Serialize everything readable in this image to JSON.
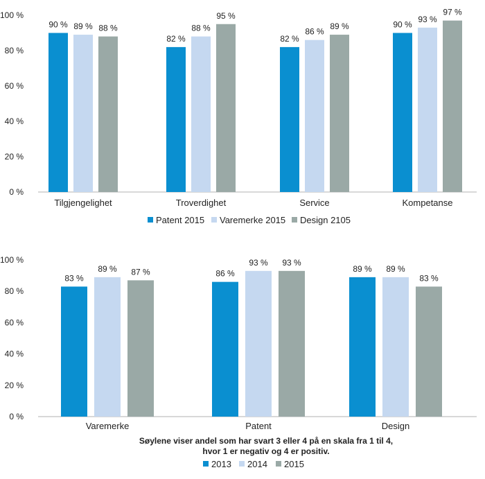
{
  "chart_data": [
    {
      "type": "bar",
      "categories": [
        "Tilgjengelighet",
        "Troverdighet",
        "Service",
        "Kompetanse"
      ],
      "series": [
        {
          "name": "Patent 2015",
          "values": [
            90,
            82,
            82,
            90
          ],
          "labels": [
            "90 %",
            "82 %",
            "82 %",
            "90 %"
          ],
          "color": "#0a8fd0"
        },
        {
          "name": "Varemerke 2015",
          "values": [
            89,
            88,
            86,
            93
          ],
          "labels": [
            "89 %",
            "88 %",
            "86 %",
            "93 %"
          ],
          "color": "#c5d8f0"
        },
        {
          "name": "Design 2105",
          "values": [
            88,
            95,
            89,
            97
          ],
          "labels": [
            "88 %",
            "95 %",
            "89 %",
            "97 %"
          ],
          "color": "#9aa9a6"
        }
      ],
      "ylim": [
        0,
        100
      ],
      "yticks": [
        0,
        20,
        40,
        60,
        80,
        100
      ],
      "ytick_labels": [
        "0 %",
        "20 %",
        "40 %",
        "60 %",
        "80 %",
        "100 %"
      ],
      "grid": false,
      "legend": "bottom"
    },
    {
      "type": "bar",
      "categories": [
        "Varemerke",
        "Patent",
        "Design"
      ],
      "series": [
        {
          "name": "2013",
          "values": [
            83,
            86,
            89
          ],
          "labels": [
            "83 %",
            "86 %",
            "89 %"
          ],
          "color": "#0a8fd0"
        },
        {
          "name": "2014",
          "values": [
            89,
            93,
            89
          ],
          "labels": [
            "89 %",
            "93 %",
            "89 %"
          ],
          "color": "#c5d8f0"
        },
        {
          "name": "2015",
          "values": [
            87,
            93,
            83
          ],
          "labels": [
            "87 %",
            "93 %",
            "83 %"
          ],
          "color": "#9aa9a6"
        }
      ],
      "ylim": [
        0,
        100
      ],
      "yticks": [
        0,
        20,
        40,
        60,
        80,
        100
      ],
      "ytick_labels": [
        "0 %",
        "20 %",
        "40 %",
        "60 %",
        "80 %",
        "100 %"
      ],
      "grid": false,
      "legend": "bottom",
      "note_lines": [
        "Søylene viser andel som har svart 3 eller 4 på en skala fra 1 til 4,",
        "hvor 1 er negativ og 4 er positiv."
      ]
    }
  ]
}
